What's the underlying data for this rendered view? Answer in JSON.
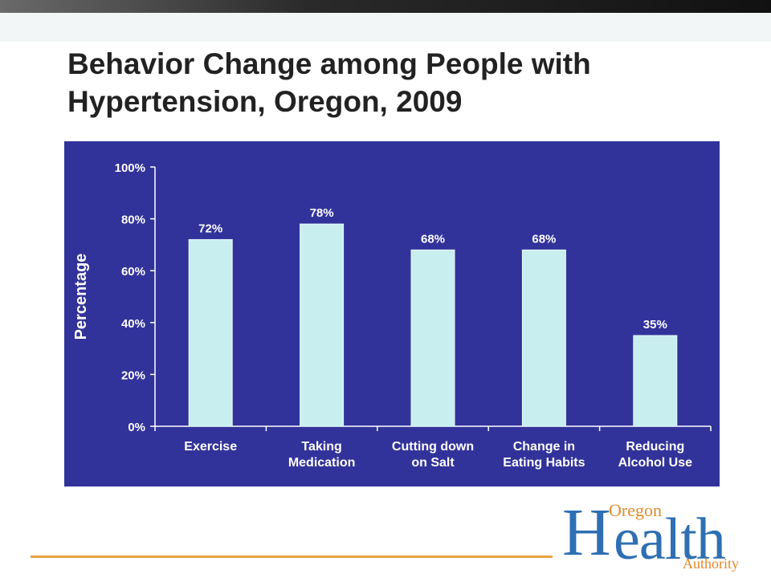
{
  "slide": {
    "title_line1": "Behavior Change among People with",
    "title_line2": "Hypertension, Oregon, 2009"
  },
  "logo": {
    "oregon": "Oregon",
    "health_H": "H",
    "health_rest": "ealth",
    "authority": "Authority"
  },
  "colors": {
    "panel": "#32339a",
    "bar": "#c9eef0",
    "axis": "#ffffff",
    "accent_line": "#e8a33d"
  },
  "chart_data": {
    "type": "bar",
    "categories": [
      [
        "Exercise"
      ],
      [
        "Taking",
        "Medication"
      ],
      [
        "Cutting down",
        "on Salt"
      ],
      [
        "Change in",
        "Eating Habits"
      ],
      [
        "Reducing",
        "Alcohol Use"
      ]
    ],
    "values": [
      72,
      78,
      68,
      68,
      35
    ],
    "data_labels": [
      "72%",
      "78%",
      "68%",
      "68%",
      "35%"
    ],
    "title": "",
    "xlabel": "",
    "ylabel": "Percentage",
    "ylim": [
      0,
      100
    ],
    "yticks": [
      0,
      20,
      40,
      60,
      80,
      100
    ],
    "ytick_labels": [
      "0%",
      "20%",
      "40%",
      "60%",
      "80%",
      "100%"
    ],
    "grid": false,
    "legend": "none"
  }
}
